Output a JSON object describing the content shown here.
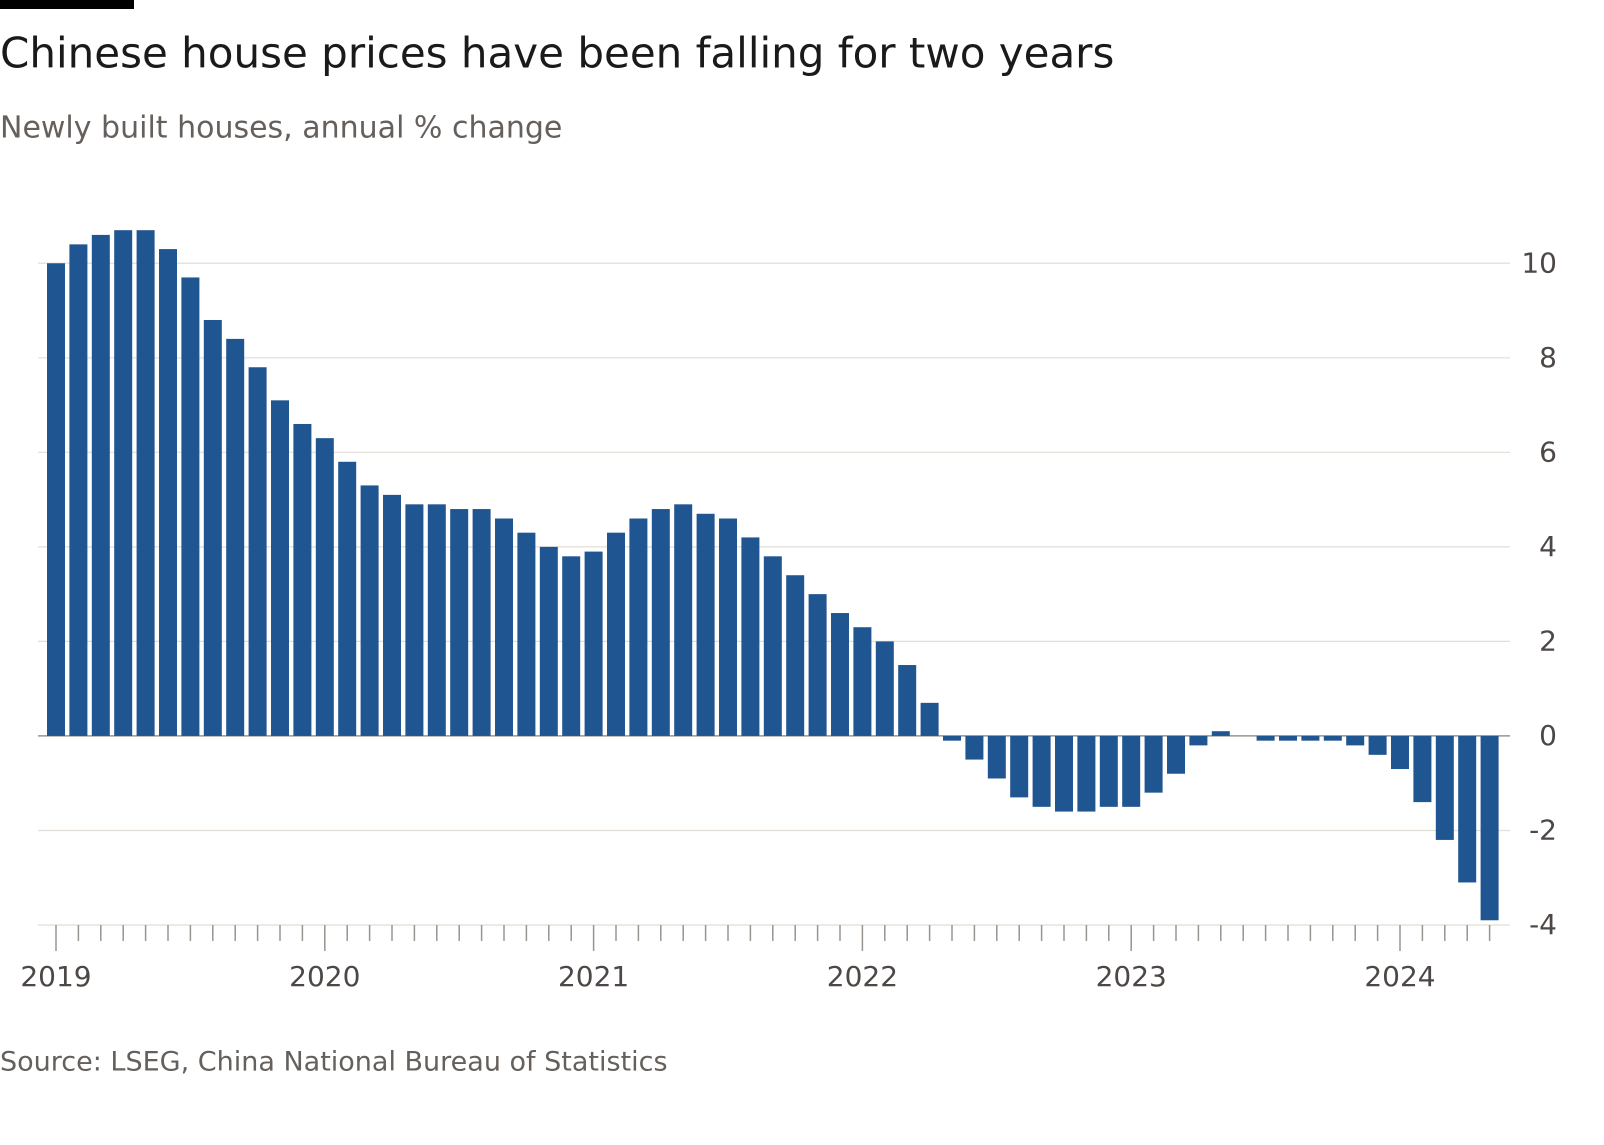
{
  "chart_data": {
    "type": "bar",
    "title": "Chinese house prices have been falling for two years",
    "subtitle": "Newly built houses, annual % change",
    "source": "Source: LSEG, China National Bureau of Statistics",
    "categories": [
      "2019",
      null,
      null,
      null,
      null,
      null,
      null,
      null,
      null,
      null,
      null,
      null,
      "2020",
      null,
      null,
      null,
      null,
      null,
      null,
      null,
      null,
      null,
      null,
      null,
      "2021",
      null,
      null,
      null,
      null,
      null,
      null,
      null,
      null,
      null,
      null,
      null,
      "2022",
      null,
      null,
      null,
      null,
      null,
      null,
      null,
      null,
      null,
      null,
      null,
      "2023",
      null,
      null,
      null,
      null,
      null,
      null,
      null,
      null,
      null,
      null,
      null,
      "2024",
      null,
      null,
      null,
      null
    ],
    "values": [
      10.0,
      10.4,
      10.6,
      10.7,
      10.7,
      10.3,
      9.7,
      8.8,
      8.4,
      7.8,
      7.1,
      6.6,
      6.3,
      5.8,
      5.3,
      5.1,
      4.9,
      4.9,
      4.8,
      4.8,
      4.6,
      4.3,
      4.0,
      3.8,
      3.9,
      4.3,
      4.6,
      4.8,
      4.9,
      4.7,
      4.6,
      4.2,
      3.8,
      3.4,
      3.0,
      2.6,
      2.3,
      2.0,
      1.5,
      0.7,
      -0.1,
      -0.5,
      -0.9,
      -1.3,
      -1.5,
      -1.6,
      -1.6,
      -1.5,
      -1.5,
      -1.2,
      -0.8,
      -0.2,
      0.1,
      0,
      -0.1,
      -0.1,
      -0.1,
      -0.1,
      -0.2,
      -0.4,
      -0.7,
      -1.4,
      -2.2,
      -3.1,
      -3.9
    ],
    "color": "#1f5590",
    "ylim": [
      -4,
      11
    ],
    "yticks": [
      -4,
      -2,
      0,
      2,
      4,
      6,
      8,
      10
    ],
    "grid": true,
    "y_axis_side": "right"
  }
}
